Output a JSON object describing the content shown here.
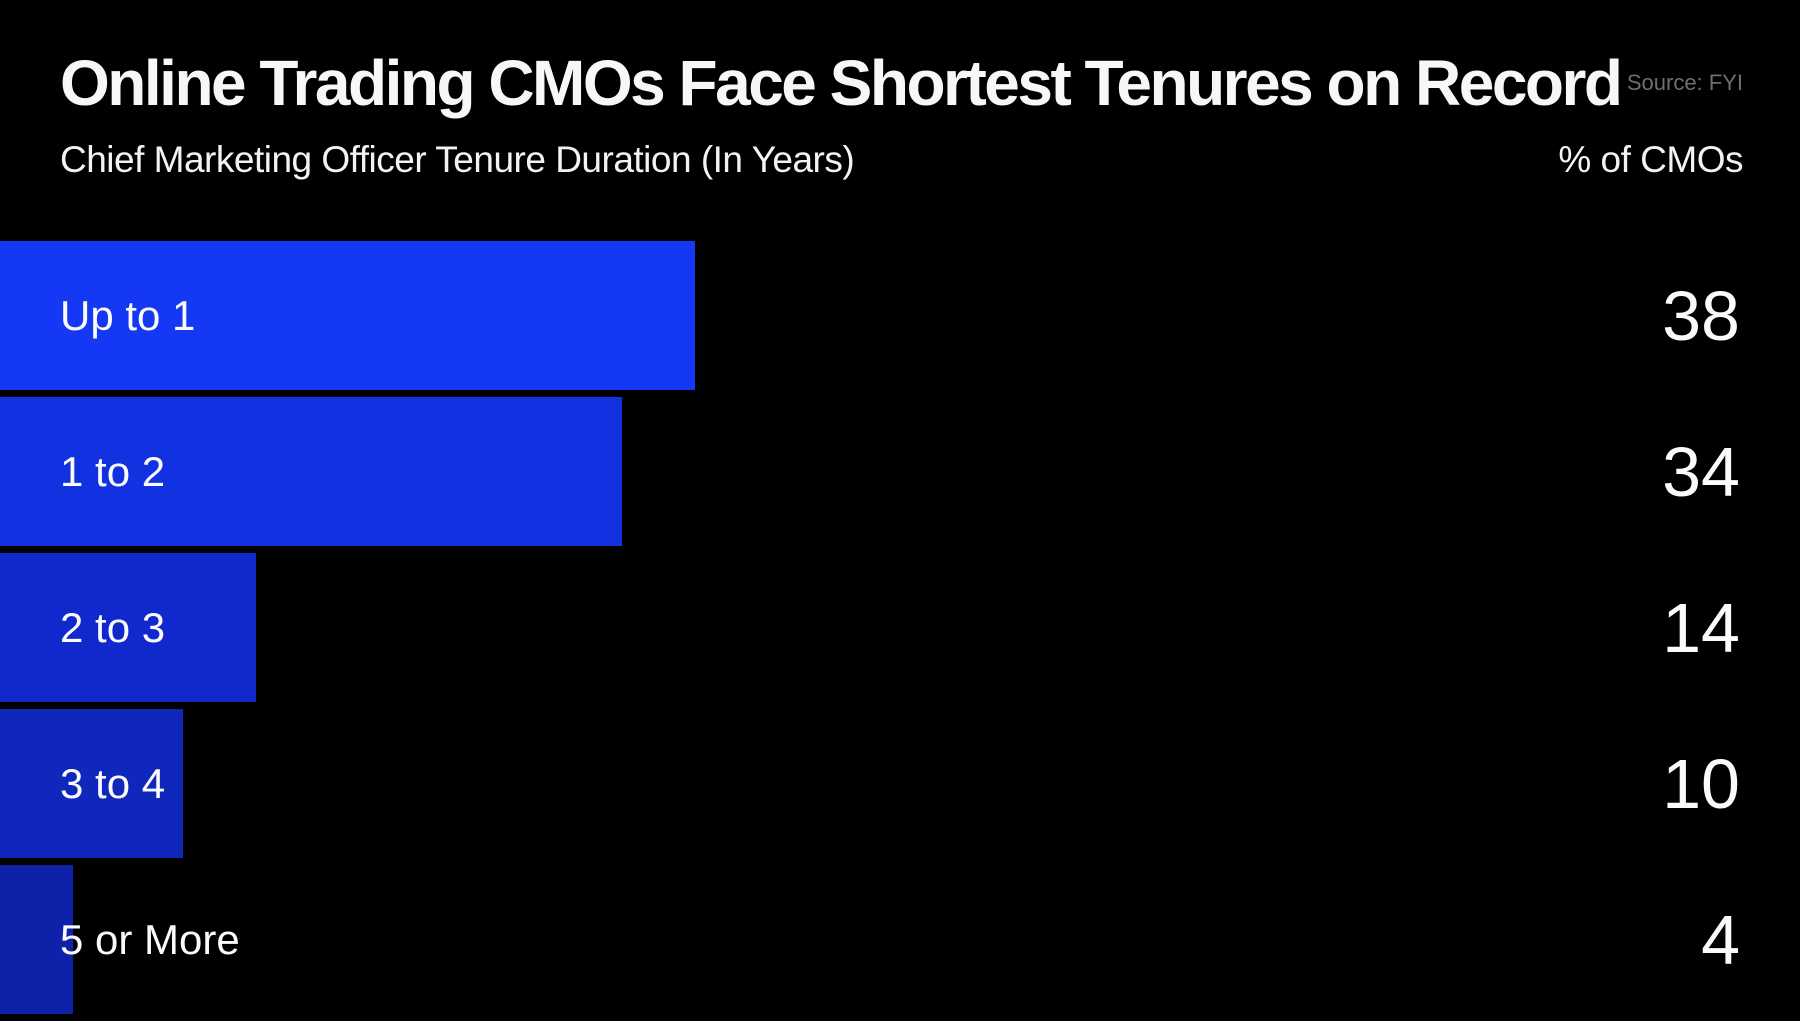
{
  "header": {
    "title": "Online Trading CMOs Face Shortest Tenures on Record",
    "subtitle": "Chief Marketing Officer Tenure Duration (In Years)",
    "source": "Source: FYI",
    "value_axis_label": "% of CMOs"
  },
  "colors": {
    "background": "#000000",
    "text": "#f7f7f9",
    "source_text": "#6e6e73",
    "bar_colors": [
      "#1438F3",
      "#1232E2",
      "#1129CC",
      "#0F28BB",
      "#0D22A8"
    ]
  },
  "chart_data": {
    "type": "bar",
    "orientation": "horizontal",
    "title": "Online Trading CMOs Face Shortest Tenures on Record",
    "subtitle": "Chief Marketing Officer Tenure Duration (In Years)",
    "xlabel": "% of CMOs",
    "ylabel": "Chief Marketing Officer Tenure Duration (In Years)",
    "categories": [
      "Up to 1",
      "1 to 2",
      "2 to 3",
      "3 to 4",
      "5 or More"
    ],
    "values": [
      38,
      34,
      14,
      10,
      4
    ],
    "xlim": [
      0,
      38
    ],
    "grid": false,
    "legend": false,
    "value_labels_shown": true,
    "source": "Source: FYI"
  }
}
